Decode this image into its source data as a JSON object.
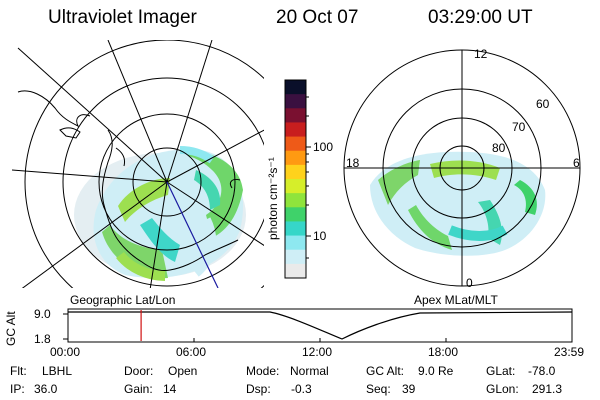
{
  "header": {
    "title": "Ultraviolet Imager",
    "date": "20 Oct 07",
    "time": "03:29:00 UT"
  },
  "left_map": {
    "caption": "Geographic Lat/Lon"
  },
  "right_map": {
    "caption": "Apex MLat/MLT",
    "mlt_labels": [
      "12",
      "18",
      "6",
      "0"
    ],
    "lat_labels": [
      "60",
      "70",
      "80"
    ]
  },
  "colorbar": {
    "unit_label": "photon cm⁻²s⁻¹",
    "tick_labels": [
      "100",
      "10"
    ],
    "colors": [
      "#0a0f2a",
      "#3a1040",
      "#7a1030",
      "#c81e1e",
      "#ee5a18",
      "#ff9a12",
      "#ffd21c",
      "#d6ee2a",
      "#8fe43c",
      "#3fd26a",
      "#36d6c8",
      "#8ee8f0",
      "#cfeef6",
      "#eaeaea"
    ]
  },
  "timeline": {
    "y_label": "GC Alt",
    "y_ticks": [
      "9.0",
      "1.8"
    ],
    "x_ticks": [
      "00:00",
      "06:00",
      "12:00",
      "18:00",
      "23:59"
    ],
    "current_time_hours": 3.483
  },
  "info": {
    "flt_label": "Flt:",
    "flt_value": "LBHL",
    "ip_label": "IP:",
    "ip_value": "36.0",
    "door_label": "Door:",
    "door_value": "Open",
    "gain_label": "Gain:",
    "gain_value": "14",
    "mode_label": "Mode:",
    "mode_value": "Normal",
    "dsp_label": "Dsp:",
    "dsp_value": "-0.3",
    "gcalt_label": "GC Alt:",
    "gcalt_value": "9.0 Re",
    "seq_label": "Seq:",
    "seq_value": "39",
    "glat_label": "GLat:",
    "glat_value": "-78.0",
    "glon_label": "GLon:",
    "glon_value": "291.3"
  },
  "colors": {
    "marker": "#d01010",
    "meridian": "#1a1aa0"
  }
}
